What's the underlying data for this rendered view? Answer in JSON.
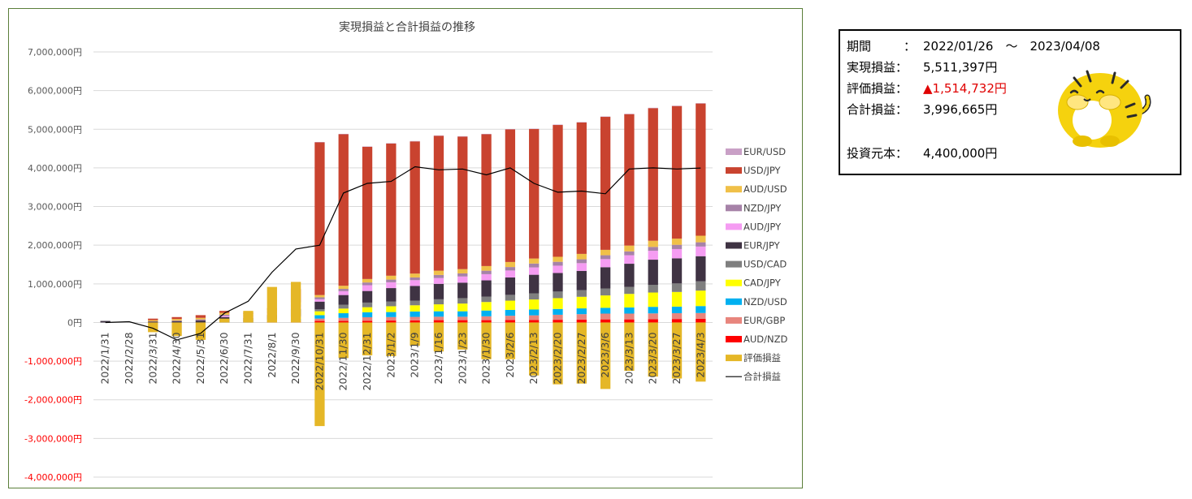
{
  "chart_data": {
    "type": "bar",
    "title": "実現損益と合計損益の推移",
    "ylim": [
      -4000000,
      7000000
    ],
    "yticks": [
      {
        "value": 7000000,
        "label": "7,000,000円"
      },
      {
        "value": 6000000,
        "label": "6,000,000円"
      },
      {
        "value": 5000000,
        "label": "5,000,000円"
      },
      {
        "value": 4000000,
        "label": "4,000,000円"
      },
      {
        "value": 3000000,
        "label": "3,000,000円"
      },
      {
        "value": 2000000,
        "label": "2,000,000円"
      },
      {
        "value": 1000000,
        "label": "1,000,000円"
      },
      {
        "value": 0,
        "label": "0円"
      },
      {
        "value": -1000000,
        "label": "-1,000,000円"
      },
      {
        "value": -2000000,
        "label": "-2,000,000円"
      },
      {
        "value": -3000000,
        "label": "-3,000,000円"
      },
      {
        "value": -4000000,
        "label": "-4,000,000円"
      }
    ],
    "categories": [
      "2022/1/31",
      "2022/2/28",
      "2022/3/31",
      "2022/4/30",
      "2022/5/31",
      "2022/6/30",
      "2022/7/31",
      "2022/8/1",
      "2022/9/30",
      "2022/10/31",
      "2022/11/30",
      "2022/12/31",
      "2023/1/2",
      "2023/1/9",
      "2023/1/16",
      "2023/1/23",
      "2023/1/30",
      "2023/2/6",
      "2023/2/13",
      "2023/2/20",
      "2023/2/27",
      "2023/3/6",
      "2023/3/13",
      "2023/3/20",
      "2023/3/27",
      "2023/4/3"
    ],
    "stack_order": [
      "AUD/NZD",
      "EUR/GBP",
      "NZD/USD",
      "CAD/JPY",
      "USD/CAD",
      "EUR/JPY",
      "AUD/JPY",
      "NZD/JPY",
      "AUD/USD",
      "USD/JPY",
      "EUR/USD"
    ],
    "legend": [
      "EUR/USD",
      "USD/JPY",
      "AUD/USD",
      "NZD/JPY",
      "AUD/JPY",
      "EUR/JPY",
      "USD/CAD",
      "CAD/JPY",
      "NZD/USD",
      "EUR/GBP",
      "AUD/NZD",
      "評価損益",
      "合計損益"
    ],
    "colors": {
      "EUR/USD": "#c9a0c6",
      "USD/JPY": "#c9432f",
      "AUD/USD": "#f0c048",
      "NZD/JPY": "#a682a8",
      "AUD/JPY": "#f59cf2",
      "EUR/JPY": "#3f3343",
      "USD/CAD": "#7f7f7f",
      "CAD/JPY": "#ffff00",
      "NZD/USD": "#00b0f0",
      "EUR/GBP": "#e8857d",
      "AUD/NZD": "#ff0000",
      "評価損益": "#e5b727",
      "合計損益": "#000000"
    },
    "series": [
      {
        "name": "AUD/NZD",
        "values": [
          0,
          0,
          0,
          0,
          0,
          0,
          0,
          20000,
          30000,
          40000,
          40000,
          45000,
          50000,
          55000,
          60000,
          60000,
          60000,
          65000,
          65000,
          70000,
          75000,
          80000,
          80000,
          85000,
          90000,
          95000
        ]
      },
      {
        "name": "EUR/GBP",
        "values": [
          0,
          0,
          0,
          0,
          0,
          0,
          0,
          15000,
          20000,
          60000,
          80000,
          90000,
          90000,
          90000,
          90000,
          90000,
          100000,
          110000,
          120000,
          130000,
          140000,
          150000,
          150000,
          150000,
          150000,
          150000
        ]
      },
      {
        "name": "NZD/USD",
        "values": [
          0,
          0,
          0,
          0,
          0,
          0,
          0,
          20000,
          40000,
          90000,
          120000,
          130000,
          130000,
          140000,
          140000,
          140000,
          150000,
          150000,
          150000,
          150000,
          150000,
          150000,
          160000,
          170000,
          170000,
          180000
        ]
      },
      {
        "name": "CAD/JPY",
        "values": [
          0,
          0,
          0,
          0,
          0,
          0,
          0,
          10000,
          50000,
          100000,
          120000,
          130000,
          150000,
          160000,
          180000,
          200000,
          220000,
          240000,
          260000,
          280000,
          300000,
          320000,
          350000,
          370000,
          380000,
          400000
        ]
      },
      {
        "name": "USD/CAD",
        "values": [
          0,
          0,
          0,
          0,
          0,
          0,
          0,
          10000,
          30000,
          50000,
          100000,
          120000,
          120000,
          120000,
          130000,
          140000,
          140000,
          150000,
          160000,
          170000,
          170000,
          180000,
          180000,
          200000,
          220000,
          240000
        ]
      },
      {
        "name": "EUR/JPY",
        "values": [
          40000,
          0,
          20000,
          30000,
          50000,
          140000,
          120000,
          120000,
          180000,
          200000,
          250000,
          300000,
          350000,
          380000,
          400000,
          400000,
          420000,
          450000,
          480000,
          480000,
          500000,
          550000,
          600000,
          650000,
          650000,
          650000
        ]
      },
      {
        "name": "AUD/JPY",
        "values": [
          0,
          0,
          0,
          0,
          0,
          30000,
          30000,
          50000,
          60000,
          60000,
          100000,
          150000,
          150000,
          150000,
          150000,
          160000,
          160000,
          180000,
          190000,
          190000,
          200000,
          210000,
          220000,
          230000,
          240000,
          250000
        ]
      },
      {
        "name": "NZD/JPY",
        "values": [
          0,
          0,
          10000,
          20000,
          30000,
          30000,
          30000,
          40000,
          50000,
          50000,
          60000,
          70000,
          70000,
          70000,
          80000,
          80000,
          90000,
          90000,
          100000,
          100000,
          100000,
          100000,
          100000,
          100000,
          110000,
          110000
        ]
      },
      {
        "name": "AUD/USD",
        "values": [
          0,
          0,
          30000,
          40000,
          40000,
          50000,
          40000,
          50000,
          60000,
          60000,
          80000,
          90000,
          100000,
          100000,
          110000,
          110000,
          120000,
          130000,
          130000,
          130000,
          140000,
          140000,
          150000,
          160000,
          160000,
          170000
        ]
      },
      {
        "name": "USD/JPY",
        "values": [
          0,
          0,
          40000,
          50000,
          70000,
          50000,
          30000,
          30000,
          340000,
          3950000,
          3920000,
          3420000,
          3420000,
          3420000,
          3490000,
          3430000,
          3410000,
          3430000,
          3350000,
          3410000,
          3400000,
          3440000,
          3400000,
          3430000,
          3430000,
          3420000
        ]
      },
      {
        "name": "EUR/USD",
        "values": [
          0,
          0,
          0,
          0,
          0,
          0,
          20000,
          10000,
          10000,
          10000,
          10000,
          10000,
          10000,
          10000,
          10000,
          10000,
          10000,
          10000,
          10000,
          10000,
          10000,
          10000,
          10000,
          10000,
          10000,
          10000
        ]
      },
      {
        "name": "評価損益",
        "values": [
          0,
          0,
          -250000,
          -350000,
          -450000,
          100000,
          300000,
          920000,
          1050000,
          -2680000,
          -920000,
          -850000,
          -870000,
          -600000,
          -750000,
          -700000,
          -950000,
          -950000,
          -1370000,
          -1600000,
          -1580000,
          -1720000,
          -1250000,
          -1400000,
          -1450000,
          -1530000
        ]
      },
      {
        "name": "合計損益",
        "values": [
          0,
          20000,
          -150000,
          -450000,
          -280000,
          240000,
          550000,
          1300000,
          1900000,
          2000000,
          3350000,
          3600000,
          3650000,
          4030000,
          3950000,
          3970000,
          3820000,
          4000000,
          3600000,
          3370000,
          3400000,
          3330000,
          3970000,
          4000000,
          3970000,
          3996665
        ]
      }
    ]
  },
  "summary": {
    "period_label": "期間",
    "period_sep": "：",
    "period_value": "2022/01/26　～　2023/04/08",
    "realized_label": "実現損益：",
    "realized_value": "5,511,397円",
    "unrealized_label": "評価損益：",
    "unrealized_value": "▲1,514,732円",
    "total_label": "合計損益：",
    "total_value": "3,996,665円",
    "capital_label": "投資元本：",
    "capital_value": "4,400,000円"
  }
}
